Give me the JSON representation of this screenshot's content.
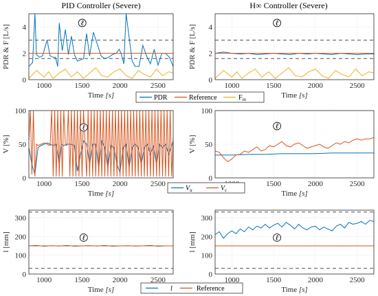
{
  "colors": {
    "pdr": "#0072BD",
    "reference": "#D95319",
    "fin": "#EDB120",
    "vu": "#0072BD",
    "vc": "#D95319",
    "l": "#0072BD",
    "limit": "#4d4d4d"
  },
  "annotation_symbol": "ℓ",
  "chart_data": [
    {
      "type": "line",
      "title": "PID Controller (Severe)",
      "xlabel": "Time [s]",
      "ylabel": "PDR & F [L/s]",
      "xlim": [
        800,
        2700
      ],
      "ylim": [
        0,
        5
      ],
      "xticks": [
        "1000",
        "1500",
        "2000",
        "2500"
      ],
      "yticks": [
        "0",
        "2",
        "4"
      ],
      "grid": true,
      "hlines": [
        3,
        1.6
      ],
      "series": [
        {
          "name": "PDR",
          "x": [
            800,
            850,
            880,
            900,
            940,
            980,
            1000,
            1040,
            1080,
            1120,
            1150,
            1180,
            1200,
            1240,
            1280,
            1320,
            1360,
            1400,
            1440,
            1480,
            1520,
            1560,
            1600,
            1650,
            1700,
            1750,
            1800,
            1850,
            1900,
            1950,
            1990,
            2020,
            2050,
            2080,
            2120,
            2160,
            2200,
            2250,
            2300,
            2350,
            2400,
            2450,
            2500,
            2550,
            2600,
            2650,
            2700
          ],
          "values": [
            1.0,
            1.3,
            5.0,
            1.9,
            1.7,
            1.8,
            2.2,
            3.0,
            1.8,
            1.7,
            1.7,
            1.0,
            4.3,
            2.2,
            3.8,
            1.9,
            3.3,
            1.9,
            1.4,
            1.5,
            1.6,
            3.5,
            1.8,
            3.6,
            2.7,
            1.8,
            1.6,
            1.7,
            1.9,
            2.0,
            2.3,
            1.9,
            1.2,
            5.0,
            3.2,
            1.4,
            1.0,
            1.0,
            2.6,
            1.8,
            1.2,
            2.3,
            1.1,
            2.0,
            2.0,
            1.7,
            1.0
          ]
        },
        {
          "name": "Reference",
          "x": [
            800,
            2700
          ],
          "values": [
            2.0,
            2.0
          ]
        },
        {
          "name": "F_in",
          "x": [
            800,
            900,
            1000,
            1060,
            1120,
            1200,
            1280,
            1360,
            1440,
            1520,
            1600,
            1680,
            1760,
            1840,
            1920,
            2000,
            2080,
            2160,
            2240,
            2320,
            2400,
            2480,
            2560,
            2640,
            2700
          ],
          "values": [
            0.1,
            0.7,
            0.2,
            0.6,
            0.1,
            0.5,
            0.8,
            0.2,
            0.6,
            0.1,
            0.5,
            0.9,
            0.3,
            0.2,
            0.6,
            0.8,
            0.3,
            0.1,
            0.7,
            0.4,
            0.2,
            0.8,
            0.3,
            0.6,
            0.5
          ]
        }
      ],
      "legend": [
        "PDR",
        "Reference",
        "F_in"
      ]
    },
    {
      "type": "line",
      "title": "H∞ Controller (Severe)",
      "xlabel": "Time [s]",
      "ylabel": "PDR & F [L/s]",
      "xlim": [
        800,
        2700
      ],
      "ylim": [
        0,
        5
      ],
      "xticks": [
        "1000",
        "1500",
        "2000",
        "2500"
      ],
      "yticks": [
        "0",
        "2",
        "4"
      ],
      "grid": true,
      "hlines": [
        3,
        1.6
      ],
      "series": [
        {
          "name": "PDR",
          "x": [
            800,
            900,
            1000,
            1100,
            1200,
            1300,
            1400,
            1500,
            1600,
            1700,
            1800,
            1900,
            2000,
            2100,
            2200,
            2300,
            2400,
            2500,
            2600,
            2700
          ],
          "values": [
            2.0,
            2.1,
            2.0,
            1.95,
            2.0,
            1.9,
            1.95,
            2.0,
            1.95,
            1.9,
            2.0,
            1.95,
            2.0,
            1.95,
            1.9,
            2.0,
            1.95,
            1.9,
            1.95,
            1.95
          ]
        },
        {
          "name": "Reference",
          "x": [
            800,
            2700
          ],
          "values": [
            2.0,
            2.0
          ]
        },
        {
          "name": "F_in",
          "x": [
            800,
            900,
            1000,
            1060,
            1120,
            1200,
            1280,
            1360,
            1440,
            1520,
            1600,
            1680,
            1760,
            1840,
            1920,
            2000,
            2080,
            2160,
            2240,
            2320,
            2400,
            2480,
            2560,
            2640,
            2700
          ],
          "values": [
            0.1,
            0.7,
            0.2,
            0.6,
            0.1,
            0.5,
            0.8,
            0.2,
            0.6,
            0.1,
            0.5,
            0.9,
            0.3,
            0.2,
            0.6,
            0.8,
            0.3,
            0.1,
            0.7,
            0.4,
            0.2,
            0.8,
            0.3,
            0.6,
            0.5
          ]
        }
      ]
    },
    {
      "type": "line",
      "xlabel": "Time [s]",
      "ylabel": "V [%]",
      "xlim": [
        800,
        2700
      ],
      "ylim": [
        0,
        100
      ],
      "xticks": [
        "1000",
        "1500",
        "2000",
        "2500"
      ],
      "yticks": [
        "0",
        "50",
        "100"
      ],
      "grid": true,
      "series": [
        {
          "name": "V_u",
          "x": [
            800,
            840,
            880,
            920,
            960,
            1000,
            1040,
            1080,
            1120,
            1160,
            1200,
            1230,
            1260,
            1300,
            1350,
            1400,
            1440,
            1480,
            1520,
            1560,
            1600,
            1640,
            1680,
            1720,
            1760,
            1800,
            1840,
            1880,
            1920,
            1960,
            2000,
            2040,
            2080,
            2120,
            2160,
            2200,
            2240,
            2280,
            2320,
            2360,
            2400,
            2440,
            2480,
            2520,
            2560,
            2600,
            2640,
            2700
          ],
          "values": [
            45,
            20,
            5,
            45,
            48,
            50,
            52,
            50,
            48,
            50,
            20,
            50,
            48,
            50,
            50,
            48,
            10,
            35,
            55,
            50,
            20,
            50,
            50,
            15,
            55,
            45,
            15,
            48,
            45,
            20,
            8,
            45,
            50,
            15,
            45,
            50,
            45,
            20,
            45,
            50,
            35,
            48,
            20,
            50,
            45,
            50,
            35,
            55
          ]
        },
        {
          "name": "V_c",
          "x": [
            800,
            820,
            840,
            860,
            880,
            900,
            920,
            960,
            1000,
            1040,
            1080,
            1100,
            1120,
            1140,
            1160,
            1180,
            1200,
            1220,
            1240,
            1260,
            1280,
            1300,
            1320,
            1340,
            1360,
            1380,
            1400,
            1420,
            1440,
            1460,
            1480,
            1500,
            1520,
            1540,
            1560,
            1580,
            1600,
            1620,
            1640,
            1660,
            1680,
            1700,
            1720,
            1740,
            1760,
            1780,
            1800,
            1820,
            1840,
            1860,
            1880,
            1900,
            1920,
            1940,
            1960,
            1980,
            2000,
            2020,
            2040,
            2060,
            2080,
            2100,
            2120,
            2140,
            2160,
            2180,
            2200,
            2220,
            2240,
            2260,
            2280,
            2300,
            2320,
            2340,
            2360,
            2380,
            2400,
            2420,
            2440,
            2460,
            2480,
            2500,
            2520,
            2540,
            2560,
            2580,
            2600,
            2620,
            2640,
            2660,
            2680,
            2700
          ],
          "values": [
            55,
            100,
            5,
            100,
            2,
            50,
            48,
            50,
            52,
            50,
            48,
            100,
            2,
            100,
            2,
            100,
            2,
            100,
            2,
            100,
            50,
            48,
            100,
            2,
            100,
            2,
            100,
            2,
            100,
            2,
            100,
            2,
            100,
            50,
            2,
            100,
            2,
            100,
            2,
            100,
            2,
            100,
            2,
            100,
            2,
            100,
            2,
            100,
            2,
            100,
            2,
            100,
            2,
            100,
            2,
            100,
            2,
            100,
            2,
            100,
            2,
            100,
            2,
            100,
            2,
            100,
            2,
            100,
            2,
            100,
            2,
            100,
            2,
            100,
            2,
            100,
            2,
            100,
            2,
            100,
            2,
            100,
            2,
            100,
            2,
            100,
            2,
            100,
            2,
            100,
            2,
            60
          ]
        }
      ],
      "legend": [
        "V_u",
        "V_c"
      ]
    },
    {
      "type": "line",
      "xlabel": "Time [s]",
      "ylabel": "V [%]",
      "xlim": [
        800,
        2700
      ],
      "ylim": [
        0,
        100
      ],
      "xticks": [
        "1000",
        "1500",
        "2000",
        "2500"
      ],
      "yticks": [
        "0",
        "50",
        "100"
      ],
      "grid": true,
      "series": [
        {
          "name": "V_u",
          "x": [
            800,
            1000,
            1200,
            1400,
            1600,
            1800,
            2000,
            2200,
            2400,
            2600,
            2700
          ],
          "values": [
            34,
            34,
            35,
            35,
            36,
            36,
            36,
            37,
            37,
            37,
            37
          ]
        },
        {
          "name": "V_c",
          "x": [
            800,
            850,
            900,
            950,
            1000,
            1050,
            1100,
            1150,
            1200,
            1250,
            1300,
            1350,
            1400,
            1450,
            1500,
            1550,
            1600,
            1650,
            1700,
            1750,
            1800,
            1850,
            1900,
            1950,
            2000,
            2050,
            2100,
            2150,
            2200,
            2250,
            2300,
            2350,
            2400,
            2450,
            2500,
            2550,
            2600,
            2650,
            2700
          ],
          "values": [
            40,
            38,
            30,
            24,
            28,
            34,
            35,
            40,
            38,
            42,
            46,
            40,
            42,
            48,
            46,
            50,
            54,
            48,
            46,
            50,
            52,
            48,
            44,
            46,
            48,
            50,
            46,
            44,
            48,
            52,
            50,
            54,
            52,
            56,
            58,
            56,
            58,
            58,
            60
          ]
        }
      ]
    },
    {
      "type": "line",
      "xlabel": "Time [s]",
      "ylabel": "l [mm]",
      "xlim": [
        800,
        2700
      ],
      "ylim": [
        0,
        340
      ],
      "xticks": [
        "1000",
        "1500",
        "2000",
        "2500"
      ],
      "yticks": [
        "0",
        "100",
        "200",
        "300"
      ],
      "grid": true,
      "hlines": [
        330,
        30
      ],
      "series": [
        {
          "name": "l",
          "x": [
            800,
            900,
            1000,
            1100,
            1200,
            1300,
            1400,
            1500,
            1600,
            1700,
            1800,
            1900,
            2000,
            2100,
            2200,
            2300,
            2400,
            2500,
            2600,
            2700
          ],
          "values": [
            150,
            152,
            148,
            151,
            149,
            152,
            148,
            150,
            151,
            149,
            152,
            148,
            150,
            151,
            149,
            150,
            152,
            148,
            150,
            150
          ]
        },
        {
          "name": "Reference",
          "x": [
            800,
            2700
          ],
          "values": [
            150,
            150
          ]
        }
      ],
      "legend": [
        "l",
        "Reference"
      ]
    },
    {
      "type": "line",
      "xlabel": "Time [s]",
      "ylabel": "l [mm]",
      "xlim": [
        800,
        2700
      ],
      "ylim": [
        0,
        340
      ],
      "xticks": [
        "1000",
        "1500",
        "2000",
        "2500"
      ],
      "yticks": [
        "0",
        "100",
        "200",
        "300"
      ],
      "grid": true,
      "hlines": [
        330,
        30
      ],
      "series": [
        {
          "name": "l",
          "x": [
            800,
            850,
            900,
            950,
            1000,
            1050,
            1100,
            1150,
            1200,
            1250,
            1300,
            1350,
            1400,
            1450,
            1500,
            1550,
            1600,
            1650,
            1700,
            1750,
            1800,
            1850,
            1900,
            1950,
            2000,
            2050,
            2100,
            2150,
            2200,
            2250,
            2300,
            2350,
            2400,
            2450,
            2500,
            2550,
            2600,
            2650,
            2700
          ],
          "values": [
            210,
            225,
            190,
            215,
            230,
            215,
            240,
            225,
            250,
            235,
            255,
            245,
            265,
            245,
            260,
            270,
            250,
            275,
            260,
            240,
            265,
            245,
            235,
            250,
            255,
            235,
            250,
            240,
            230,
            255,
            265,
            245,
            275,
            265,
            270,
            280,
            265,
            285,
            280
          ]
        },
        {
          "name": "Reference",
          "x": [
            800,
            2700
          ],
          "values": [
            150,
            150
          ]
        }
      ]
    }
  ]
}
